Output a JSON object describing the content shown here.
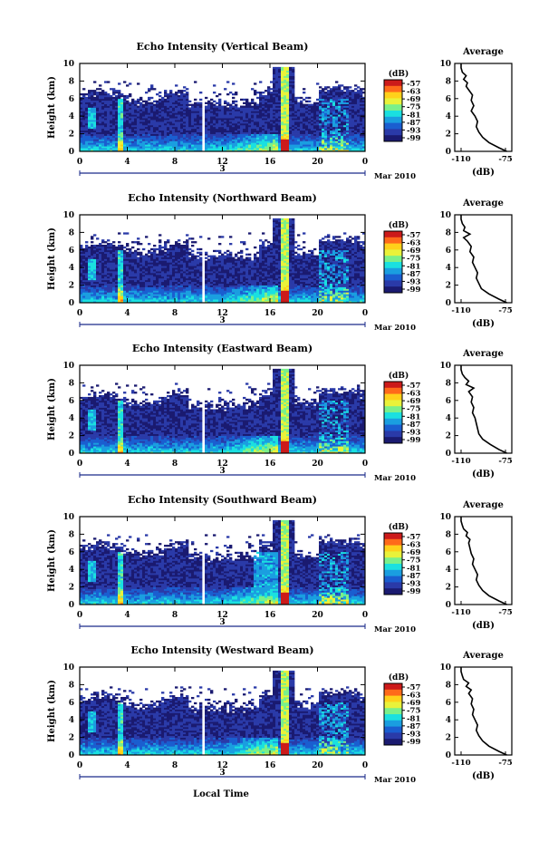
{
  "figure": {
    "bottom_xlabel": "Local Time"
  },
  "colorbar": {
    "unit": "(dB)",
    "ticks": [
      "-57",
      "-63",
      "-69",
      "-75",
      "-81",
      "-87",
      "-93",
      "-99"
    ],
    "colors": [
      "#cc1a1a",
      "#ff6a1a",
      "#ffd11a",
      "#e9f23a",
      "#7af08a",
      "#1ae0e0",
      "#1a9ee0",
      "#1a5ed0",
      "#2a3aa8",
      "#1a1a70"
    ]
  },
  "chart_data": [
    {
      "type": "heatmap",
      "title": "Echo Intensity (Vertical Beam)",
      "ylabel": "Height (km)",
      "x_ticks": [
        "0",
        "4",
        "8",
        "12",
        "16",
        "20",
        "0"
      ],
      "y_ticks": [
        "0",
        "2",
        "4",
        "6",
        "8",
        "10"
      ],
      "ylim": [
        0,
        10
      ],
      "date_marker": "3",
      "date_label": "Mar 2010",
      "profile": {
        "title": "Average",
        "xlabel": "(dB)",
        "x_ticks": [
          "-110",
          "-75"
        ],
        "y_ticks": [
          "0",
          "2",
          "4",
          "6",
          "8",
          "10"
        ],
        "xlim": [
          -115,
          -70
        ],
        "points": [
          [
            -74,
            0
          ],
          [
            -80,
            0.4
          ],
          [
            -88,
            1
          ],
          [
            -93,
            1.6
          ],
          [
            -96,
            2.2
          ],
          [
            -98,
            2.8
          ],
          [
            -97,
            3.4
          ],
          [
            -99,
            4
          ],
          [
            -102,
            4.6
          ],
          [
            -100,
            5.2
          ],
          [
            -102,
            5.8
          ],
          [
            -101,
            6.4
          ],
          [
            -104,
            7
          ],
          [
            -106,
            7.4
          ],
          [
            -105,
            7.8
          ],
          [
            -108,
            8.2
          ],
          [
            -106,
            8.6
          ],
          [
            -109,
            9
          ],
          [
            -110,
            9.5
          ],
          [
            -110,
            10
          ]
        ]
      }
    },
    {
      "type": "heatmap",
      "title": "Echo Intensity (Northward Beam)",
      "ylabel": "Height (km)",
      "x_ticks": [
        "0",
        "4",
        "8",
        "12",
        "16",
        "20",
        "0"
      ],
      "y_ticks": [
        "0",
        "2",
        "4",
        "6",
        "8",
        "10"
      ],
      "ylim": [
        0,
        10
      ],
      "date_marker": "3",
      "date_label": "Mar 2010",
      "profile": {
        "title": "Average",
        "xlabel": "(dB)",
        "x_ticks": [
          "-110",
          "-75"
        ],
        "y_ticks": [
          "0",
          "2",
          "4",
          "6",
          "8",
          "10"
        ],
        "xlim": [
          -115,
          -70
        ],
        "points": [
          [
            -74,
            0
          ],
          [
            -80,
            0.4
          ],
          [
            -88,
            1
          ],
          [
            -94,
            1.6
          ],
          [
            -96,
            2.2
          ],
          [
            -98,
            2.8
          ],
          [
            -97,
            3.4
          ],
          [
            -99,
            4
          ],
          [
            -101,
            4.6
          ],
          [
            -100,
            5.2
          ],
          [
            -103,
            5.8
          ],
          [
            -102,
            6.4
          ],
          [
            -105,
            7
          ],
          [
            -108,
            7.4
          ],
          [
            -103,
            7.8
          ],
          [
            -108,
            8.2
          ],
          [
            -107,
            8.6
          ],
          [
            -109,
            9
          ],
          [
            -110,
            9.5
          ],
          [
            -110,
            10
          ]
        ]
      }
    },
    {
      "type": "heatmap",
      "title": "Echo Intensity (Eastward Beam)",
      "ylabel": "Height (km)",
      "x_ticks": [
        "0",
        "4",
        "8",
        "12",
        "16",
        "20",
        "0"
      ],
      "y_ticks": [
        "0",
        "2",
        "4",
        "6",
        "8",
        "10"
      ],
      "ylim": [
        0,
        10
      ],
      "date_marker": "3",
      "date_label": "Mar 2010",
      "profile": {
        "title": "Average",
        "xlabel": "(dB)",
        "x_ticks": [
          "-110",
          "-75"
        ],
        "y_ticks": [
          "0",
          "2",
          "4",
          "6",
          "8",
          "10"
        ],
        "xlim": [
          -115,
          -70
        ],
        "points": [
          [
            -74,
            0
          ],
          [
            -80,
            0.4
          ],
          [
            -87,
            1
          ],
          [
            -93,
            1.6
          ],
          [
            -96,
            2.2
          ],
          [
            -97,
            2.8
          ],
          [
            -98,
            3.4
          ],
          [
            -99,
            4
          ],
          [
            -101,
            4.6
          ],
          [
            -100,
            5.2
          ],
          [
            -102,
            5.8
          ],
          [
            -101,
            6.4
          ],
          [
            -104,
            7
          ],
          [
            -100,
            7.4
          ],
          [
            -106,
            7.8
          ],
          [
            -104,
            8.2
          ],
          [
            -107,
            8.6
          ],
          [
            -109,
            9
          ],
          [
            -110,
            9.5
          ],
          [
            -110,
            10
          ]
        ]
      }
    },
    {
      "type": "heatmap",
      "title": "Echo Intensity (Southward Beam)",
      "ylabel": "Height (km)",
      "x_ticks": [
        "0",
        "4",
        "8",
        "12",
        "16",
        "20",
        "0"
      ],
      "y_ticks": [
        "0",
        "2",
        "4",
        "6",
        "8",
        "10"
      ],
      "ylim": [
        0,
        10
      ],
      "date_marker": "3",
      "date_label": "Mar 2010",
      "profile": {
        "title": "Average",
        "xlabel": "(dB)",
        "x_ticks": [
          "-110",
          "-75"
        ],
        "y_ticks": [
          "0",
          "2",
          "4",
          "6",
          "8",
          "10"
        ],
        "xlim": [
          -115,
          -70
        ],
        "points": [
          [
            -74,
            0
          ],
          [
            -80,
            0.4
          ],
          [
            -88,
            1
          ],
          [
            -93,
            1.6
          ],
          [
            -96,
            2.2
          ],
          [
            -98,
            2.8
          ],
          [
            -97,
            3.4
          ],
          [
            -99,
            4
          ],
          [
            -101,
            4.6
          ],
          [
            -100,
            5.2
          ],
          [
            -102,
            5.8
          ],
          [
            -103,
            6.4
          ],
          [
            -104,
            7
          ],
          [
            -103,
            7.4
          ],
          [
            -106,
            7.8
          ],
          [
            -105,
            8.2
          ],
          [
            -108,
            8.6
          ],
          [
            -109,
            9
          ],
          [
            -110,
            9.5
          ],
          [
            -110,
            10
          ]
        ]
      }
    },
    {
      "type": "heatmap",
      "title": "Echo Intensity (Westward Beam)",
      "ylabel": "Height (km)",
      "x_ticks": [
        "0",
        "4",
        "8",
        "12",
        "16",
        "20",
        "0"
      ],
      "y_ticks": [
        "0",
        "2",
        "4",
        "6",
        "8",
        "10"
      ],
      "ylim": [
        0,
        10
      ],
      "date_marker": "3",
      "date_label": "Mar 2010",
      "profile": {
        "title": "Average",
        "xlabel": "(dB)",
        "x_ticks": [
          "-110",
          "-75"
        ],
        "y_ticks": [
          "0",
          "2",
          "4",
          "6",
          "8",
          "10"
        ],
        "xlim": [
          -115,
          -70
        ],
        "points": [
          [
            -74,
            0
          ],
          [
            -80,
            0.4
          ],
          [
            -88,
            1
          ],
          [
            -93,
            1.6
          ],
          [
            -96,
            2.2
          ],
          [
            -98,
            2.8
          ],
          [
            -97,
            3.4
          ],
          [
            -99,
            4
          ],
          [
            -101,
            4.6
          ],
          [
            -100,
            5.2
          ],
          [
            -102,
            5.8
          ],
          [
            -101,
            6.4
          ],
          [
            -104,
            7
          ],
          [
            -102,
            7.4
          ],
          [
            -106,
            7.8
          ],
          [
            -104,
            8.2
          ],
          [
            -108,
            8.6
          ],
          [
            -109,
            9
          ],
          [
            -110,
            9.5
          ],
          [
            -110,
            10
          ]
        ]
      }
    }
  ]
}
